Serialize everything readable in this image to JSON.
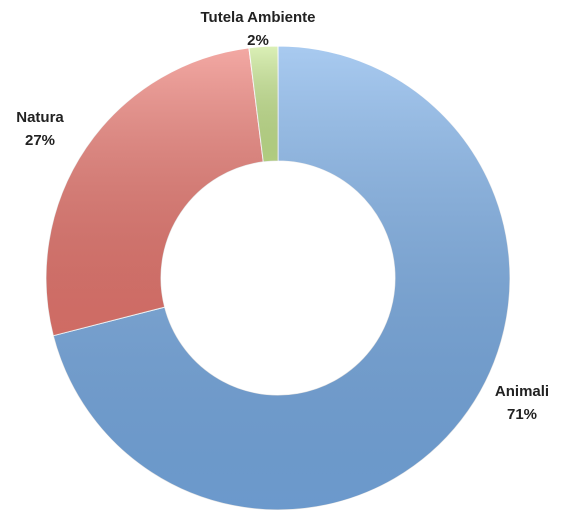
{
  "chart_data": {
    "type": "donut",
    "categories": [
      "Animali",
      "Natura",
      "Tutela Ambiente"
    ],
    "values": [
      71,
      27,
      2
    ],
    "value_labels": [
      "71%",
      "27%",
      "2%"
    ],
    "colors": [
      "#7aaee8",
      "#ec7a72",
      "#c8e890"
    ]
  }
}
